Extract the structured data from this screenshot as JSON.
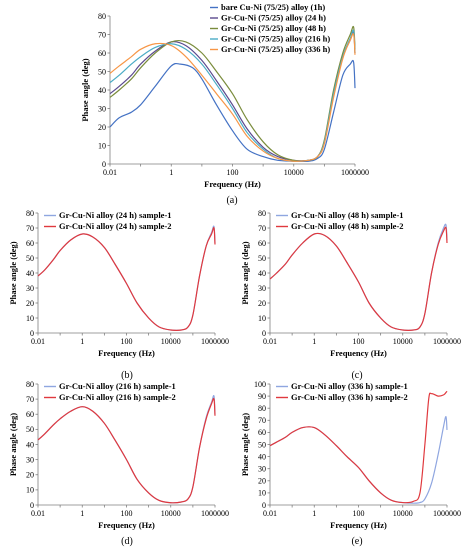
{
  "chart_data": [
    {
      "id": "a",
      "type": "line",
      "caption": "(a)",
      "xlabel": "Frequency (Hz)",
      "ylabel": "Phase angle (deg)",
      "xscale": "log",
      "xlim": [
        0.01,
        1000000
      ],
      "ylim": [
        0,
        80
      ],
      "xticks": [
        "0.01",
        "1",
        "100",
        "10000",
        "1000000"
      ],
      "xtick_values": [
        0.01,
        1,
        100,
        10000,
        1000000
      ],
      "yticks": [
        0,
        10,
        20,
        30,
        40,
        50,
        60,
        70,
        80
      ],
      "legend_position": "top-right",
      "series": [
        {
          "name": "bare Cu-Ni (75/25) alloy (1h)",
          "color": "#4472c4",
          "x": [
            0.01,
            0.02,
            0.05,
            0.1,
            0.3,
            1,
            2,
            5,
            10,
            30,
            100,
            300,
            1000,
            3000,
            10000,
            30000,
            60000,
            100000,
            200000,
            400000,
            700000,
            900000,
            1000000
          ],
          "y": [
            20,
            25,
            28,
            32,
            42,
            53,
            54,
            52,
            46,
            32,
            18,
            8,
            4,
            2,
            1.5,
            1.5,
            3,
            8,
            28,
            48,
            54,
            55,
            41
          ]
        },
        {
          "name": "Gr-Cu-Ni (75/25) alloy (24 h)",
          "color": "#5b4a8f",
          "x": [
            0.01,
            0.02,
            0.05,
            0.1,
            0.3,
            1,
            3,
            10,
            30,
            100,
            300,
            1000,
            3000,
            10000,
            30000,
            60000,
            100000,
            200000,
            400000,
            700000,
            900000,
            1000000
          ],
          "y": [
            38,
            42,
            48,
            54,
            61,
            66,
            64,
            56,
            45,
            32,
            19,
            9,
            4,
            2,
            2,
            4,
            12,
            38,
            58,
            67,
            71,
            60
          ]
        },
        {
          "name": "Gr-Cu-Ni (75/25) alloy (48 h)",
          "color": "#7a8c3c",
          "x": [
            0.01,
            0.02,
            0.05,
            0.1,
            0.3,
            1,
            3,
            10,
            30,
            100,
            300,
            1000,
            3000,
            10000,
            30000,
            60000,
            100000,
            200000,
            400000,
            700000,
            900000,
            1000000
          ],
          "y": [
            36,
            40,
            46,
            52,
            60,
            66,
            66,
            60,
            50,
            38,
            24,
            12,
            5,
            2,
            2,
            4,
            13,
            40,
            60,
            70,
            74,
            62
          ]
        },
        {
          "name": "Gr-Cu-Ni (75/25) alloy (216 h)",
          "color": "#4bacc6",
          "x": [
            0.01,
            0.02,
            0.05,
            0.1,
            0.3,
            1,
            3,
            10,
            30,
            100,
            300,
            1000,
            3000,
            10000,
            30000,
            60000,
            100000,
            200000,
            400000,
            700000,
            900000,
            1000000
          ],
          "y": [
            44,
            48,
            54,
            58,
            63,
            65,
            62,
            54,
            43,
            30,
            17,
            8,
            3,
            1.5,
            2,
            4,
            12,
            38,
            58,
            68,
            72,
            60
          ]
        },
        {
          "name": "Gr-Cu-Ni (75/25) alloy (336 h)",
          "color": "#f79646",
          "x": [
            0.01,
            0.02,
            0.05,
            0.1,
            0.3,
            1,
            3,
            10,
            30,
            100,
            300,
            1000,
            3000,
            10000,
            30000,
            60000,
            100000,
            200000,
            400000,
            700000,
            900000,
            1000000
          ],
          "y": [
            49,
            53,
            58,
            62,
            65,
            64,
            58,
            48,
            38,
            27,
            15,
            7,
            3,
            1.5,
            2,
            4,
            11,
            36,
            57,
            67,
            70,
            59
          ]
        }
      ]
    },
    {
      "id": "b",
      "type": "line",
      "caption": "(b)",
      "xlabel": "Frequency (Hz)",
      "ylabel": "Phase angle (deg)",
      "xscale": "log",
      "xlim": [
        0.01,
        1000000
      ],
      "ylim": [
        0,
        80
      ],
      "xticks": [
        "0.01",
        "1",
        "100",
        "10000",
        "1000000"
      ],
      "xtick_values": [
        0.01,
        1,
        100,
        10000,
        1000000
      ],
      "yticks": [
        0,
        10,
        20,
        30,
        40,
        50,
        60,
        70,
        80
      ],
      "legend_position": "top-left",
      "series": [
        {
          "name": "Gr-Cu-Ni alloy (24 h) sample-1",
          "color": "#8fa6e0",
          "x": [
            0.01,
            0.02,
            0.05,
            0.1,
            0.3,
            1,
            3,
            10,
            30,
            100,
            300,
            1000,
            3000,
            10000,
            30000,
            60000,
            100000,
            200000,
            400000,
            700000,
            900000,
            1000000
          ],
          "y": [
            38,
            42,
            49,
            55,
            62,
            66,
            64,
            57,
            46,
            33,
            20,
            10,
            4,
            2,
            2,
            4,
            12,
            38,
            58,
            67,
            71,
            60
          ]
        },
        {
          "name": "Gr-Cu-Ni alloy (24 h) sample-2",
          "color": "#e0393e",
          "x": [
            0.01,
            0.02,
            0.05,
            0.1,
            0.3,
            1,
            3,
            10,
            30,
            100,
            300,
            1000,
            3000,
            10000,
            30000,
            60000,
            100000,
            200000,
            400000,
            700000,
            900000,
            1000000
          ],
          "y": [
            38,
            42,
            49,
            55,
            62,
            66,
            64,
            57,
            46,
            33,
            20,
            10,
            4,
            2,
            2,
            4,
            12,
            38,
            58,
            66,
            70,
            59
          ]
        }
      ]
    },
    {
      "id": "c",
      "type": "line",
      "caption": "(c)",
      "xlabel": "Frequency (Hz)",
      "ylabel": "Phase angle (deg)",
      "xscale": "log",
      "xlim": [
        0.01,
        1000000
      ],
      "ylim": [
        0,
        80
      ],
      "xticks": [
        "0.01",
        "1",
        "100",
        "10000",
        "1000000"
      ],
      "xtick_values": [
        0.01,
        1,
        100,
        10000,
        1000000
      ],
      "yticks": [
        0,
        10,
        20,
        30,
        40,
        50,
        60,
        70,
        80
      ],
      "legend_position": "top-left",
      "series": [
        {
          "name": "Gr-Cu-Ni alloy (48 h) sample-1",
          "color": "#8fa6e0",
          "x": [
            0.01,
            0.02,
            0.05,
            0.1,
            0.3,
            1,
            3,
            10,
            30,
            100,
            300,
            1000,
            3000,
            10000,
            30000,
            60000,
            100000,
            200000,
            400000,
            700000,
            900000,
            1000000
          ],
          "y": [
            36,
            40,
            46,
            52,
            60,
            66,
            65,
            58,
            47,
            34,
            20,
            10,
            4,
            2,
            2,
            4,
            13,
            40,
            60,
            70,
            72,
            62
          ]
        },
        {
          "name": "Gr-Cu-Ni alloy (48 h) sample-2",
          "color": "#e0393e",
          "x": [
            0.01,
            0.02,
            0.05,
            0.1,
            0.3,
            1,
            3,
            10,
            30,
            100,
            300,
            1000,
            3000,
            10000,
            30000,
            60000,
            100000,
            200000,
            400000,
            700000,
            900000,
            1000000
          ],
          "y": [
            36,
            40,
            46,
            52,
            60,
            66,
            65,
            58,
            47,
            34,
            20,
            10,
            4,
            2,
            2,
            4,
            13,
            40,
            59,
            68,
            70,
            60
          ]
        }
      ]
    },
    {
      "id": "d",
      "type": "line",
      "caption": "(d)",
      "xlabel": "Frequency (Hz)",
      "ylabel": "Phase angle (deg)",
      "xscale": "log",
      "xlim": [
        0.01,
        1000000
      ],
      "ylim": [
        0,
        80
      ],
      "xticks": [
        "0.01",
        "1",
        "100",
        "10000",
        "1000000"
      ],
      "xtick_values": [
        0.01,
        1,
        100,
        10000,
        1000000
      ],
      "yticks": [
        0,
        10,
        20,
        30,
        40,
        50,
        60,
        70,
        80
      ],
      "legend_position": "top-left",
      "series": [
        {
          "name": "Gr-Cu-Ni alloy (216 h) sample-1",
          "color": "#8fa6e0",
          "x": [
            0.01,
            0.02,
            0.05,
            0.1,
            0.3,
            1,
            3,
            10,
            30,
            100,
            300,
            1000,
            3000,
            10000,
            30000,
            60000,
            100000,
            200000,
            400000,
            700000,
            900000,
            1000000
          ],
          "y": [
            43,
            47,
            53,
            57,
            62,
            65,
            62,
            54,
            43,
            30,
            17,
            8,
            3,
            1.5,
            2,
            4,
            12,
            38,
            58,
            68,
            72,
            60
          ]
        },
        {
          "name": "Gr-Cu-Ni alloy (216 h) sample-2",
          "color": "#e0393e",
          "x": [
            0.01,
            0.02,
            0.05,
            0.1,
            0.3,
            1,
            3,
            10,
            30,
            100,
            300,
            1000,
            3000,
            10000,
            30000,
            60000,
            100000,
            200000,
            400000,
            700000,
            900000,
            1000000
          ],
          "y": [
            43,
            47,
            53,
            57,
            62,
            65,
            62,
            54,
            43,
            30,
            17,
            8,
            3,
            1.5,
            2,
            4,
            12,
            38,
            57,
            67,
            70,
            59
          ]
        }
      ]
    },
    {
      "id": "e",
      "type": "line",
      "caption": "(e)",
      "xlabel": "Frequency (Hz)",
      "ylabel": "Phase angle (deg)",
      "xscale": "log",
      "xlim": [
        0.01,
        1000000
      ],
      "ylim": [
        0,
        100
      ],
      "xticks": [
        "0.01",
        "1",
        "100",
        "10000",
        "1000000"
      ],
      "xtick_values": [
        0.01,
        1,
        100,
        10000,
        1000000
      ],
      "yticks": [
        0,
        10,
        20,
        30,
        40,
        50,
        60,
        70,
        80,
        90,
        100
      ],
      "legend_position": "top-left",
      "series": [
        {
          "name": "Gr-Cu-Ni alloy (336 h) sample-1",
          "color": "#8fa6e0",
          "x": [
            0.01,
            0.02,
            0.05,
            0.1,
            0.3,
            1,
            3,
            10,
            30,
            100,
            300,
            1000,
            3000,
            10000,
            30000,
            60000,
            100000,
            200000,
            400000,
            700000,
            900000,
            1000000
          ],
          "y": [
            49,
            52,
            56,
            60,
            64,
            64,
            58,
            49,
            40,
            31,
            20,
            10,
            4,
            2,
            1.5,
            2,
            5,
            18,
            42,
            65,
            73,
            62
          ]
        },
        {
          "name": "Gr-Cu-Ni alloy (336 h) sample-2",
          "color": "#e0393e",
          "x": [
            0.01,
            0.02,
            0.05,
            0.1,
            0.3,
            1,
            3,
            10,
            30,
            100,
            300,
            1000,
            3000,
            10000,
            30000,
            60000,
            100000,
            150000,
            200000,
            400000,
            700000,
            900000,
            1000000
          ],
          "y": [
            49,
            52,
            56,
            60,
            64,
            64,
            58,
            49,
            40,
            31,
            20,
            10,
            4,
            2,
            3,
            10,
            50,
            88,
            92,
            90,
            91,
            93,
            94
          ]
        }
      ]
    }
  ]
}
